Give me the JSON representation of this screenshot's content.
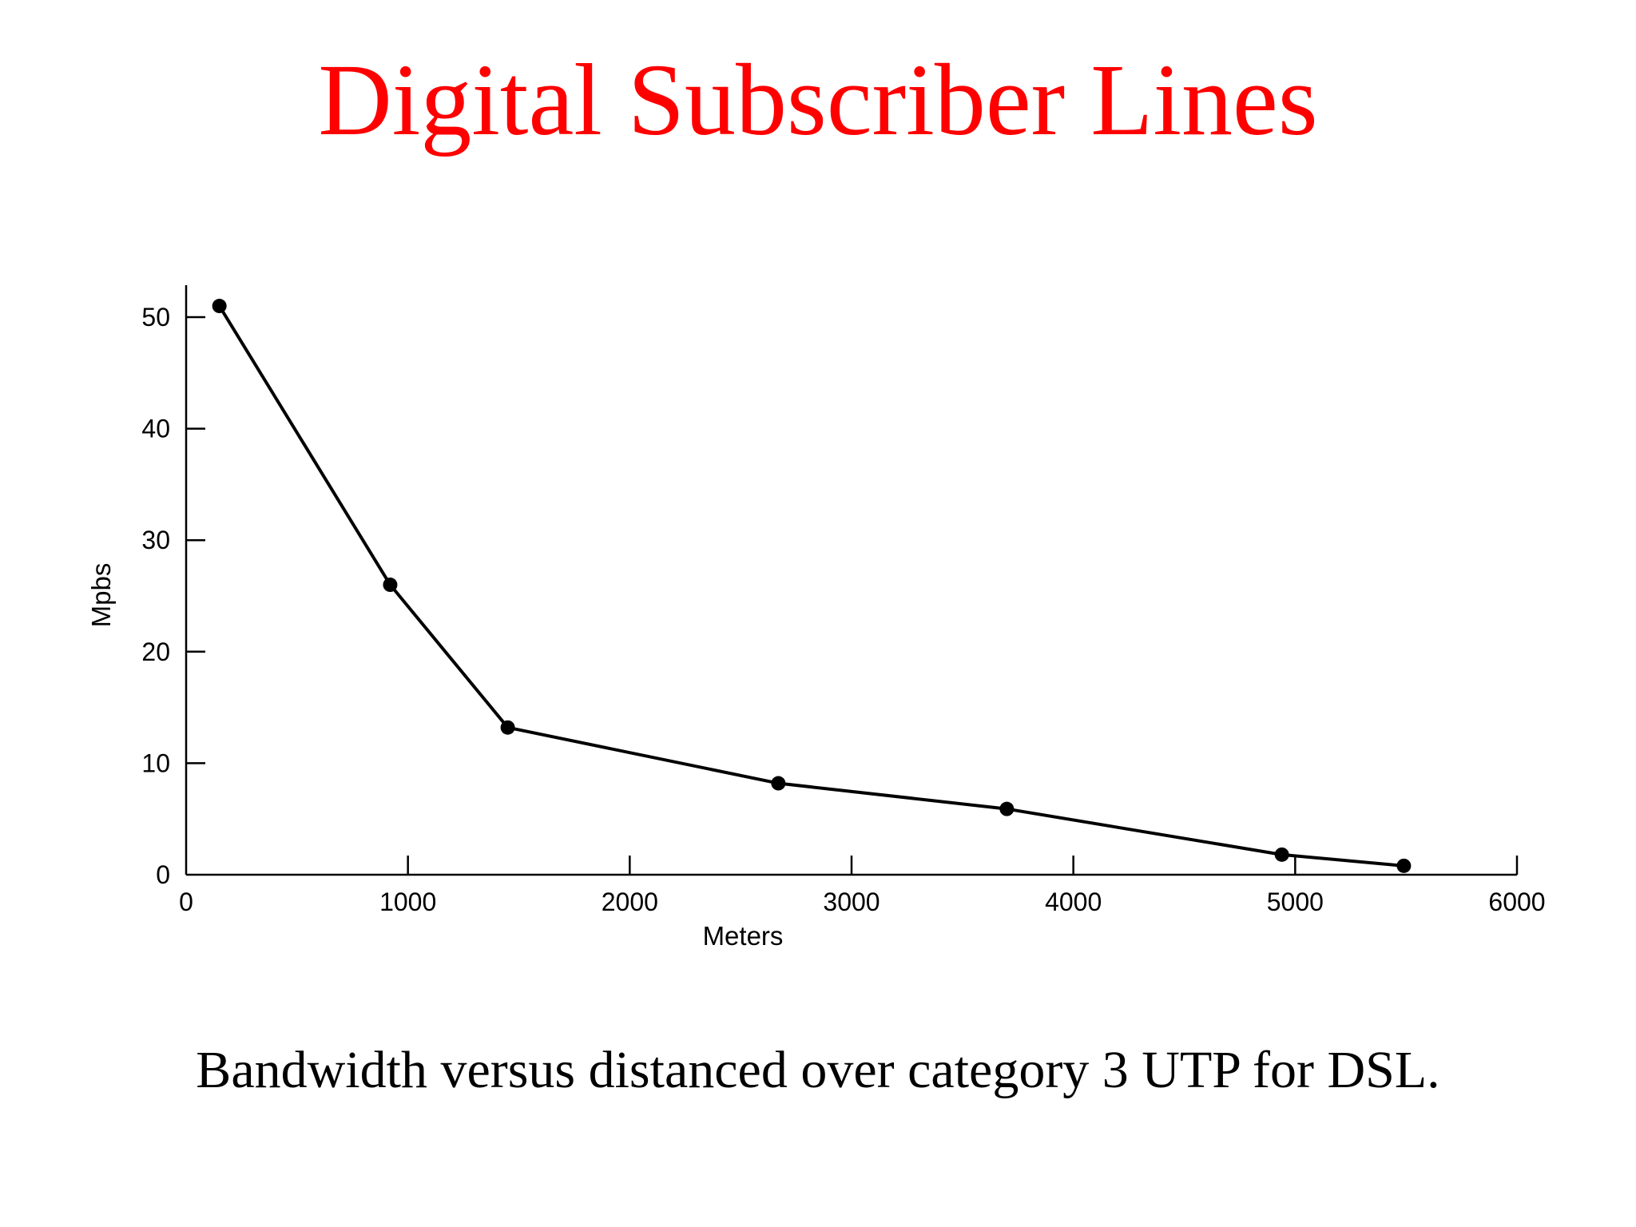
{
  "slide": {
    "title": "Digital Subscriber Lines",
    "caption": "Bandwidth versus distanced over category 3 UTP for DSL.",
    "title_color": "#ff0000",
    "caption_color": "#000000"
  },
  "chart_data": {
    "type": "line",
    "title": "",
    "xlabel": "Meters",
    "ylabel": "Mpbs",
    "xlim": [
      0,
      6000
    ],
    "ylim": [
      0,
      50
    ],
    "x_ticks": [
      0,
      1000,
      2000,
      3000,
      4000,
      5000,
      6000
    ],
    "y_ticks": [
      0,
      10,
      20,
      30,
      40,
      50
    ],
    "grid": false,
    "line_color": "#000000",
    "series": [
      {
        "x": [
          150,
          920,
          1450,
          2670,
          3700,
          4940,
          5490
        ],
        "y": [
          51,
          26,
          13.2,
          8.2,
          5.9,
          1.8,
          0.8
        ]
      }
    ]
  }
}
